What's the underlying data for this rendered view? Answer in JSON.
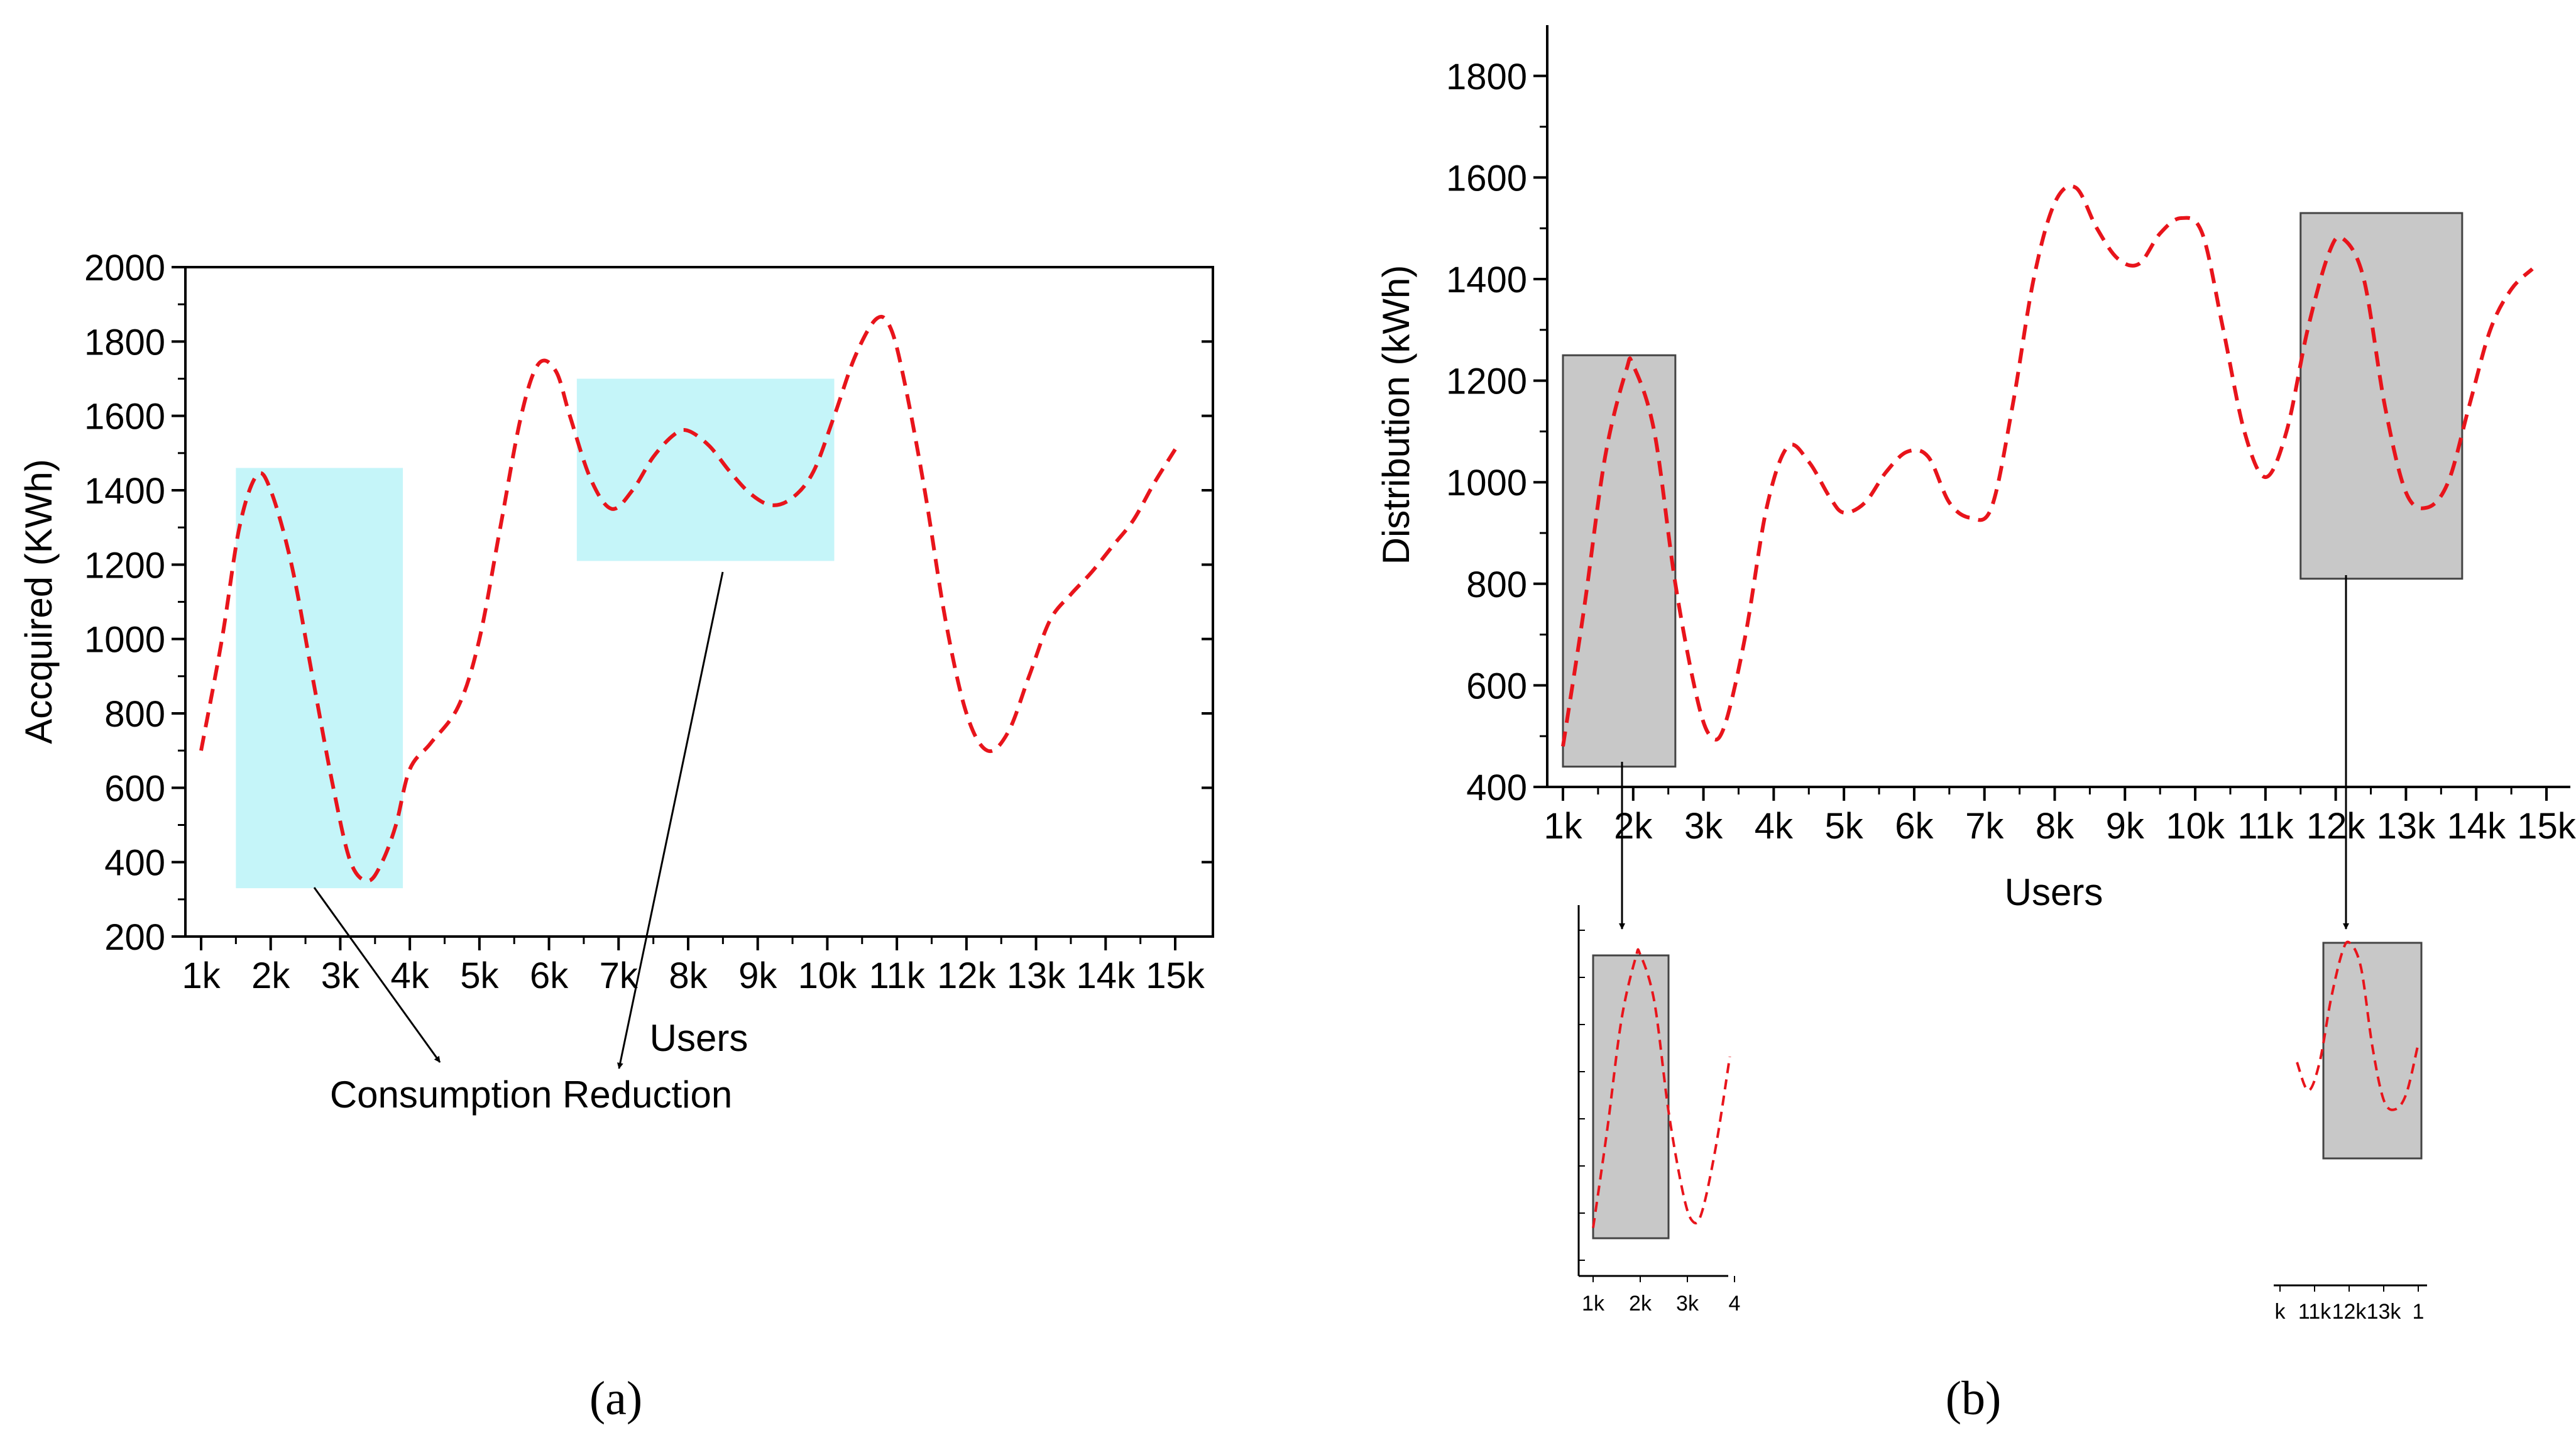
{
  "chart_data": [
    {
      "panel_label": "(a)",
      "type": "line",
      "title": "",
      "xlabel": "Users",
      "ylabel": "Accquired (KWh)",
      "categories": [
        "1k",
        "2k",
        "3k",
        "4k",
        "5k",
        "6k",
        "7k",
        "8k",
        "9k",
        "10k",
        "11k",
        "12k",
        "13k",
        "14k",
        "15k"
      ],
      "ylim": [
        200,
        2000
      ],
      "yticks": [
        200,
        400,
        600,
        800,
        1000,
        1200,
        1400,
        1600,
        1800,
        2000
      ],
      "grid": false,
      "line_color": "#e8141b",
      "line_style": "dashed",
      "series": [
        {
          "x": [
            1.0,
            1.3,
            1.55,
            1.8,
            2.0,
            2.3,
            2.6,
            2.9,
            3.15,
            3.4,
            3.6,
            3.8,
            4.0,
            4.3,
            4.7,
            5.0,
            5.3,
            5.6,
            5.85,
            6.1,
            6.3,
            6.6,
            6.9,
            7.2,
            7.5,
            7.8,
            8.0,
            8.3,
            8.6,
            8.9,
            9.2,
            9.5,
            9.8,
            10.1,
            10.4,
            10.7,
            10.9,
            11.1,
            11.4,
            11.7,
            12.0,
            12.3,
            12.6,
            12.9,
            13.2,
            13.5,
            13.8,
            14.1,
            14.4,
            14.7,
            15.0
          ],
          "values": [
            700,
            1000,
            1300,
            1440,
            1400,
            1200,
            900,
            600,
            400,
            350,
            400,
            500,
            650,
            720,
            820,
            1000,
            1300,
            1600,
            1740,
            1720,
            1600,
            1430,
            1350,
            1400,
            1490,
            1550,
            1560,
            1520,
            1450,
            1390,
            1360,
            1380,
            1450,
            1600,
            1760,
            1860,
            1840,
            1700,
            1400,
            1050,
            800,
            700,
            750,
            900,
            1050,
            1120,
            1180,
            1250,
            1320,
            1420,
            1510
          ]
        }
      ],
      "highlight_boxes": [
        {
          "x_range": [
            1.5,
            3.9
          ],
          "y_range": [
            330,
            1460
          ],
          "color": "#c5f5f9"
        },
        {
          "x_range": [
            6.4,
            10.1
          ],
          "y_range": [
            1210,
            1700
          ],
          "color": "#c5f5f9"
        }
      ],
      "annotation": "Consumption Reduction"
    },
    {
      "panel_label": "(b)",
      "type": "line",
      "title": "",
      "xlabel": "Users",
      "ylabel": "Distribution (kWh)",
      "categories": [
        "1k",
        "2k",
        "3k",
        "4k",
        "5k",
        "6k",
        "7k",
        "8k",
        "9k",
        "10k",
        "11k",
        "12k",
        "13k",
        "14k",
        "15k"
      ],
      "ylim": [
        400,
        1900
      ],
      "yticks": [
        400,
        600,
        800,
        1000,
        1200,
        1400,
        1600,
        1800
      ],
      "grid": false,
      "line_color": "#e8141b",
      "line_style": "dashed",
      "series": [
        {
          "x": [
            1.0,
            1.3,
            1.6,
            1.9,
            2.0,
            2.3,
            2.6,
            2.9,
            3.1,
            3.3,
            3.6,
            3.9,
            4.2,
            4.5,
            4.8,
            5.0,
            5.3,
            5.6,
            5.9,
            6.2,
            6.5,
            6.8,
            7.1,
            7.4,
            7.7,
            8.0,
            8.3,
            8.6,
            8.9,
            9.2,
            9.5,
            9.8,
            10.1,
            10.4,
            10.7,
            11.0,
            11.3,
            11.6,
            11.9,
            12.1,
            12.4,
            12.7,
            13.0,
            13.3,
            13.6,
            13.9,
            14.2,
            14.5,
            14.8
          ],
          "values": [
            480,
            750,
            1050,
            1220,
            1230,
            1100,
            800,
            580,
            500,
            520,
            700,
            950,
            1070,
            1040,
            970,
            940,
            960,
            1020,
            1060,
            1050,
            960,
            930,
            950,
            1150,
            1400,
            1550,
            1580,
            1500,
            1440,
            1430,
            1490,
            1520,
            1490,
            1300,
            1100,
            1010,
            1100,
            1300,
            1450,
            1480,
            1400,
            1150,
            980,
            950,
            1000,
            1150,
            1300,
            1380,
            1420
          ]
        }
      ],
      "highlight_boxes": [
        {
          "x_range": [
            1.0,
            2.6
          ],
          "y_range": [
            440,
            1250
          ],
          "color": "#c8c8c8"
        },
        {
          "x_range": [
            11.5,
            13.8
          ],
          "y_range": [
            810,
            1530
          ],
          "color": "#c8c8c8"
        }
      ],
      "insets": [
        {
          "categories": [
            "1k",
            "2k",
            "3k",
            "4"
          ]
        },
        {
          "categories": [
            "k",
            "11k",
            "12k",
            "13k",
            "1"
          ]
        }
      ]
    }
  ]
}
